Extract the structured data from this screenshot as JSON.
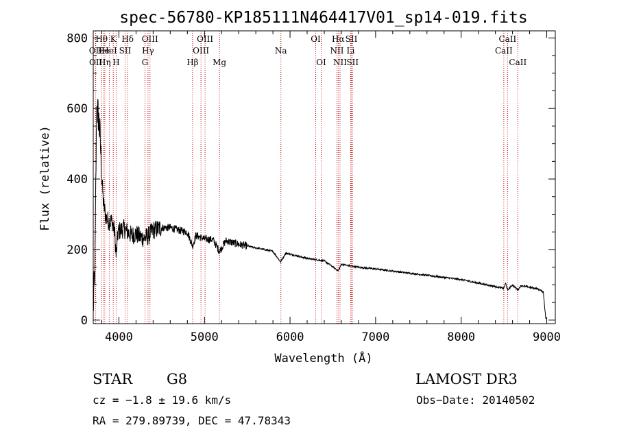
{
  "chart_data": {
    "type": "line",
    "title": "spec-56780-KP185111N464417V01_sp14-019.fits",
    "xlabel": "Wavelength (Å)",
    "ylabel": "Flux (relative)",
    "xlim": [
      3700,
      9100
    ],
    "ylim": [
      -10,
      820
    ],
    "xticks": [
      4000,
      5000,
      6000,
      7000,
      8000,
      9000
    ],
    "yticks": [
      0,
      200,
      400,
      600,
      800
    ],
    "spectrum_anchors": [
      [
        3700,
        30
      ],
      [
        3720,
        150
      ],
      [
        3740,
        600
      ],
      [
        3760,
        580
      ],
      [
        3780,
        520
      ],
      [
        3800,
        400
      ],
      [
        3820,
        330
      ],
      [
        3850,
        290
      ],
      [
        3880,
        280
      ],
      [
        3920,
        280
      ],
      [
        3950,
        250
      ],
      [
        3968,
        180
      ],
      [
        3990,
        250
      ],
      [
        4050,
        260
      ],
      [
        4100,
        250
      ],
      [
        4150,
        240
      ],
      [
        4200,
        245
      ],
      [
        4250,
        235
      ],
      [
        4300,
        232
      ],
      [
        4350,
        240
      ],
      [
        4400,
        255
      ],
      [
        4500,
        262
      ],
      [
        4600,
        262
      ],
      [
        4700,
        255
      ],
      [
        4800,
        250
      ],
      [
        4861,
        210
      ],
      [
        4900,
        240
      ],
      [
        5000,
        230
      ],
      [
        5100,
        228
      ],
      [
        5175,
        195
      ],
      [
        5250,
        225
      ],
      [
        5400,
        215
      ],
      [
        5600,
        205
      ],
      [
        5800,
        195
      ],
      [
        5890,
        165
      ],
      [
        5950,
        190
      ],
      [
        6200,
        175
      ],
      [
        6400,
        168
      ],
      [
        6563,
        140
      ],
      [
        6600,
        158
      ],
      [
        6800,
        150
      ],
      [
        7000,
        145
      ],
      [
        7500,
        130
      ],
      [
        8000,
        115
      ],
      [
        8498,
        90
      ],
      [
        8520,
        105
      ],
      [
        8542,
        85
      ],
      [
        8600,
        100
      ],
      [
        8662,
        85
      ],
      [
        8700,
        98
      ],
      [
        8900,
        88
      ],
      [
        8960,
        80
      ],
      [
        8990,
        0
      ]
    ],
    "spectral_lines": [
      {
        "name": "OII",
        "wavelength": 3727,
        "row": 2
      },
      {
        "name": "OII",
        "wavelength": 3729,
        "row": 3
      },
      {
        "name": "Hθ",
        "wavelength": 3798,
        "row": 1
      },
      {
        "name": "He",
        "wavelength": 3820,
        "row": 2
      },
      {
        "name": "Hη",
        "wavelength": 3835,
        "row": 3
      },
      {
        "name": "K",
        "wavelength": 3934,
        "row": 1
      },
      {
        "name": "HeI",
        "wavelength": 3889,
        "row": 2
      },
      {
        "name": "H",
        "wavelength": 3968,
        "row": 3
      },
      {
        "name": "Hδ",
        "wavelength": 4102,
        "row": 1
      },
      {
        "name": "SII",
        "wavelength": 4072,
        "row": 2
      },
      {
        "name": "OIII",
        "wavelength": 4363,
        "row": 1
      },
      {
        "name": "Hγ",
        "wavelength": 4340,
        "row": 2
      },
      {
        "name": "G",
        "wavelength": 4305,
        "row": 3
      },
      {
        "name": "Hβ",
        "wavelength": 4861,
        "row": 3
      },
      {
        "name": "OIII",
        "wavelength": 5007,
        "row": 1
      },
      {
        "name": "OIII",
        "wavelength": 4959,
        "row": 2
      },
      {
        "name": "Mg",
        "wavelength": 5175,
        "row": 3
      },
      {
        "name": "Na",
        "wavelength": 5893,
        "row": 2
      },
      {
        "name": "OI",
        "wavelength": 6300,
        "row": 1
      },
      {
        "name": "OI",
        "wavelength": 6364,
        "row": 3
      },
      {
        "name": "Hα",
        "wavelength": 6563,
        "row": 1
      },
      {
        "name": "SII",
        "wavelength": 6717,
        "row": 1
      },
      {
        "name": "NII",
        "wavelength": 6548,
        "row": 2
      },
      {
        "name": "Li",
        "wavelength": 6708,
        "row": 2
      },
      {
        "name": "NII",
        "wavelength": 6584,
        "row": 3
      },
      {
        "name": "SII",
        "wavelength": 6731,
        "row": 3
      },
      {
        "name": "CaII",
        "wavelength": 8542,
        "row": 1
      },
      {
        "name": "CaII",
        "wavelength": 8498,
        "row": 2
      },
      {
        "name": "CaII",
        "wavelength": 8662,
        "row": 3
      }
    ]
  },
  "info": {
    "class": "STAR",
    "subclass": "G8",
    "survey": "LAMOST DR3",
    "cz": "cz = −1.8 ± 19.6 km/s",
    "obs_date": "Obs−Date: 20140502",
    "radec": "RA = 279.89739, DEC =  47.78343"
  },
  "colors": {
    "spectrum": "#000000",
    "line_markers": "#cc0000",
    "axes": "#000000"
  }
}
